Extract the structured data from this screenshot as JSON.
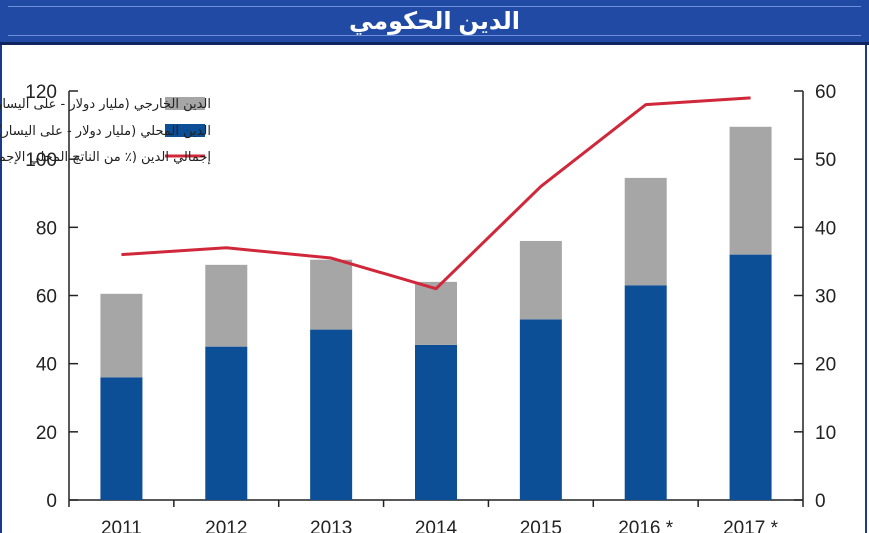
{
  "header": {
    "title": "الدين الحكومي"
  },
  "colors": {
    "external": "#a6a6a6",
    "domestic": "#0d4f96",
    "line": "#d0283a",
    "title_bg": "#214aa5"
  },
  "chart_data": {
    "type": "bar",
    "stacked": true,
    "categories": [
      "2011",
      "2012",
      "2013",
      "2014",
      "2015",
      "2016 *",
      "2017 *"
    ],
    "series": [
      {
        "name": "الدين المحلي (مليار دولار - على اليسار)",
        "type": "bar",
        "axis": "left",
        "values": [
          36,
          45,
          50,
          45.5,
          53,
          63,
          72
        ]
      },
      {
        "name": "الدين الخارجي (مليار دولار - على اليسار)",
        "type": "bar",
        "axis": "left",
        "values": [
          24.5,
          24,
          20.5,
          18.5,
          23,
          31.5,
          37.5
        ]
      },
      {
        "name": "إجمالي الدين (٪ من الناتج المحلي الإجمالي - على اليمين)",
        "type": "line",
        "axis": "right",
        "values": [
          36,
          37,
          35.5,
          31,
          46,
          58,
          59
        ]
      }
    ],
    "y_left": {
      "ylim": [
        0,
        120
      ],
      "ticks": [
        "0",
        "20",
        "40",
        "60",
        "80",
        "100",
        "120"
      ]
    },
    "y_right": {
      "ylim": [
        0,
        60
      ],
      "ticks": [
        "0",
        "10",
        "20",
        "30",
        "40",
        "50",
        "60"
      ]
    },
    "legend": {
      "placement": "top-center",
      "entries": [
        "الدين الخارجي (مليار دولار - على اليسار)",
        "الدين المحلي (مليار دولار - على اليسار)",
        "إجمالي الدين (٪ من الناتج المحلي الإجمالي - على اليمين)"
      ]
    },
    "grid": false
  }
}
